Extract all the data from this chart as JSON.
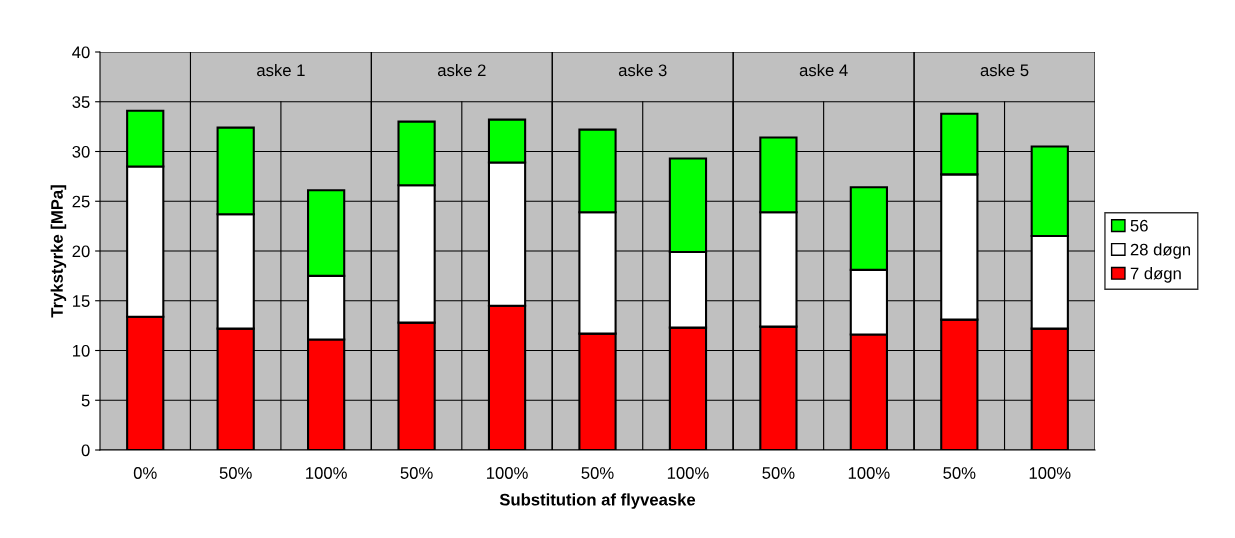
{
  "chart_data": {
    "type": "bar",
    "stacked": true,
    "xlabel": "Substitution af flyveaske",
    "ylabel": "Trykstyrke [MPa]",
    "categories": [
      "0%",
      "50%",
      "100%",
      "50%",
      "100%",
      "50%",
      "100%",
      "50%",
      "100%",
      "50%",
      "100%"
    ],
    "series": [
      {
        "name": "7 døgn",
        "color": "#ff0000",
        "values": [
          13.4,
          12.2,
          11.1,
          12.8,
          14.5,
          11.7,
          12.3,
          12.4,
          11.6,
          13.1,
          12.2
        ]
      },
      {
        "name": "28 døgn",
        "color": "#ffffff",
        "values": [
          15.1,
          11.5,
          6.4,
          13.8,
          14.4,
          12.2,
          7.6,
          11.5,
          6.5,
          14.6,
          9.3
        ]
      },
      {
        "name": "56",
        "color": "#00ff00",
        "values": [
          5.6,
          8.7,
          8.6,
          6.4,
          4.3,
          8.3,
          9.4,
          7.5,
          8.3,
          6.1,
          9.0
        ]
      }
    ],
    "ylim": [
      0,
      40
    ],
    "yticks": [
      0,
      5,
      10,
      15,
      20,
      25,
      30,
      35,
      40
    ],
    "grid": true,
    "legend": "right",
    "annotations": [
      "aske 1",
      "aske 2",
      "aske 3",
      "aske 4",
      "aske 5"
    ]
  }
}
